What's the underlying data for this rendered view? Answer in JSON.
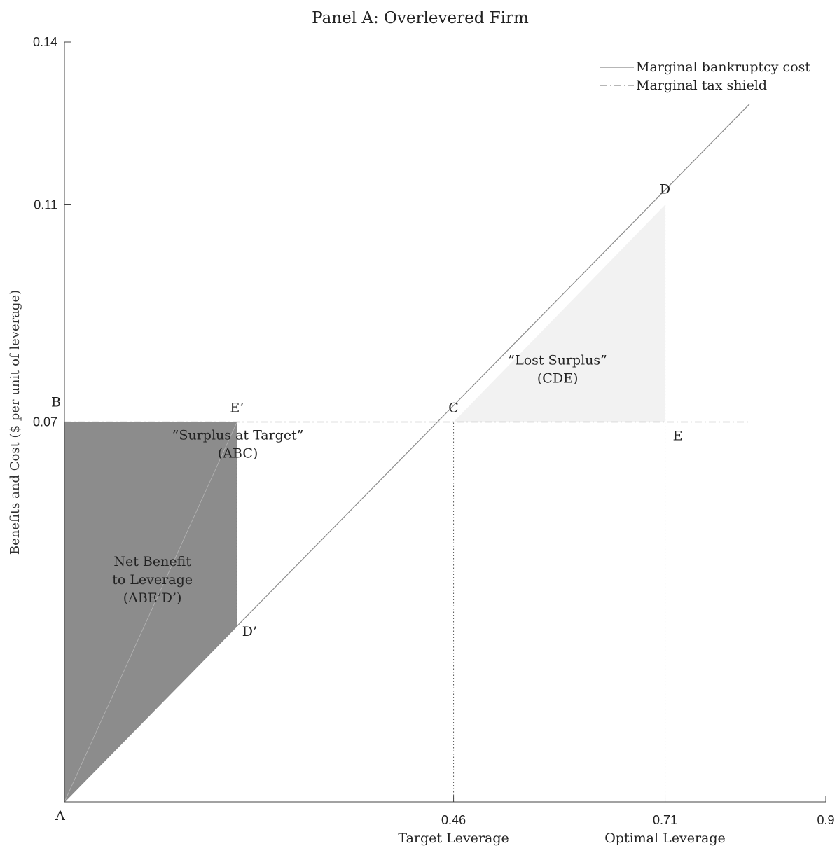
{
  "chart_data": {
    "type": "line",
    "title": "Panel A: Overlevered Firm",
    "xlabel": "",
    "ylabel": "Benefits and Cost ($ per unit of leverage)",
    "xlim": [
      0,
      0.9
    ],
    "ylim": [
      0,
      0.14
    ],
    "grid": false,
    "legend_position": "top-right",
    "colors": {
      "line": "#8a8a8a",
      "net_benefit_fill": "#8c8c8c",
      "lost_surplus_fill": "#f2f2f2",
      "axis": "#444444",
      "dotted": "#555555"
    },
    "x_ticks": [
      {
        "value": 0.46,
        "label": "0.46",
        "sublabel": "Target Leverage"
      },
      {
        "value": 0.71,
        "label": "0.71",
        "sublabel": "Optimal Leverage"
      },
      {
        "value": 0.9,
        "label": "0.9",
        "sublabel": ""
      }
    ],
    "y_ticks": [
      {
        "value": 0.07,
        "label": "0.07"
      },
      {
        "value": 0.11,
        "label": "0.11"
      },
      {
        "value": 0.14,
        "label": "0.14"
      }
    ],
    "series": [
      {
        "name": "Marginal bankruptcy cost",
        "style": "solid",
        "x": [
          0,
          0.81
        ],
        "y": [
          0,
          0.1286
        ]
      },
      {
        "name": "Marginal tax shield",
        "style": "dashdot",
        "x": [
          0,
          0.81
        ],
        "y": [
          0.07,
          0.07
        ]
      }
    ],
    "regions": [
      {
        "name": "net-benefit",
        "x": [
          0,
          0,
          0.204,
          0.204
        ],
        "y": [
          0,
          0.07,
          0.07,
          0.0324
        ]
      },
      {
        "name": "lost-surplus",
        "x": [
          0.46,
          0.71,
          0.71
        ],
        "y": [
          0.07,
          0.07,
          0.11
        ]
      }
    ],
    "thin_line": {
      "x": [
        0,
        0.204
      ],
      "y": [
        0,
        0.07
      ]
    },
    "dotted_lines": [
      {
        "x": 0.46,
        "y_from": 0,
        "y_to": 0.07
      },
      {
        "x": 0.71,
        "y_from": 0,
        "y_to": 0.11
      },
      {
        "x": 0.204,
        "y_from": 0.0324,
        "y_to": 0.07
      }
    ],
    "points": [
      {
        "label": "A",
        "x": 0,
        "y": 0,
        "dx": -6,
        "dy": 26
      },
      {
        "label": "B",
        "x": 0,
        "y": 0.07,
        "dx": -12,
        "dy": -22
      },
      {
        "label": "C",
        "x": 0.46,
        "y": 0.07,
        "dx": 0,
        "dy": -14
      },
      {
        "label": "D",
        "x": 0.71,
        "y": 0.11,
        "dx": 0,
        "dy": -16
      },
      {
        "label": "E",
        "x": 0.71,
        "y": 0.07,
        "dx": 18,
        "dy": 26
      },
      {
        "label": "E’",
        "x": 0.204,
        "y": 0.07,
        "dx": 0,
        "dy": -14
      },
      {
        "label": "D’",
        "x": 0.204,
        "y": 0.0324,
        "dx": 18,
        "dy": 14
      }
    ],
    "annotations": [
      {
        "lines": [
          "”Surplus at Target”",
          "(ABC)"
        ],
        "x": 0.205,
        "y": 0.0668
      },
      {
        "lines": [
          "”Lost Surplus”",
          "(CDE)"
        ],
        "x": 0.583,
        "y": 0.0806
      },
      {
        "lines": [
          "Net Benefit",
          "to Leverage",
          "(ABE’D’)"
        ],
        "x": 0.104,
        "y": 0.0435
      }
    ]
  }
}
